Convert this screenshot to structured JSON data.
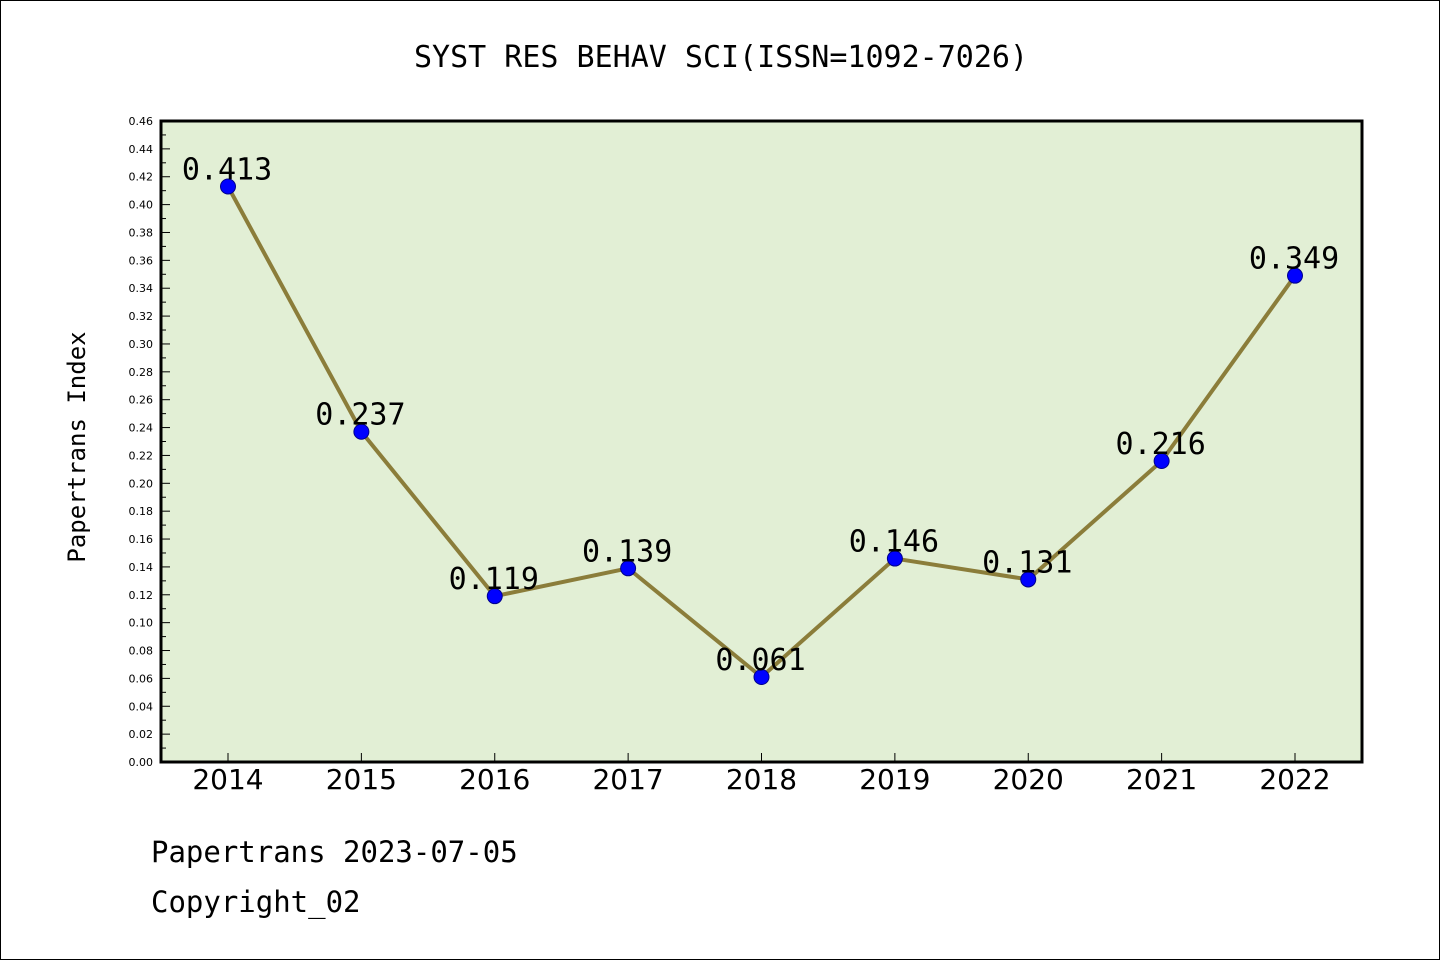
{
  "chart_data": {
    "type": "line",
    "title": "SYST RES BEHAV SCI(ISSN=1092-7026)",
    "xlabel": "",
    "ylabel": "Papertrans Index",
    "categories": [
      "2014",
      "2015",
      "2016",
      "2017",
      "2018",
      "2019",
      "2020",
      "2021",
      "2022"
    ],
    "series": [
      {
        "values": [
          0.413,
          0.237,
          0.119,
          0.139,
          0.061,
          0.146,
          0.131,
          0.216,
          0.349
        ],
        "labels": [
          "0.413",
          "0.237",
          "0.119",
          "0.139",
          "0.061",
          "0.146",
          "0.131",
          "0.216",
          "0.349"
        ]
      }
    ],
    "ylim": [
      0,
      0.46
    ],
    "yticks": [
      "0.00",
      "0.02",
      "0.04",
      "0.06",
      "0.08",
      "0.10",
      "0.12",
      "0.14",
      "0.16",
      "0.18",
      "0.20",
      "0.22",
      "0.24",
      "0.26",
      "0.28",
      "0.30",
      "0.32",
      "0.34",
      "0.36",
      "0.38",
      "0.40",
      "0.42",
      "0.44",
      "0.46"
    ],
    "grid": false,
    "colors": {
      "plot_background": "#e2efd5",
      "line": "#8b7d3a",
      "marker": "#0000ff"
    }
  },
  "footer": {
    "line1": "Papertrans 2023-07-05",
    "line2": "Copyright_02"
  }
}
